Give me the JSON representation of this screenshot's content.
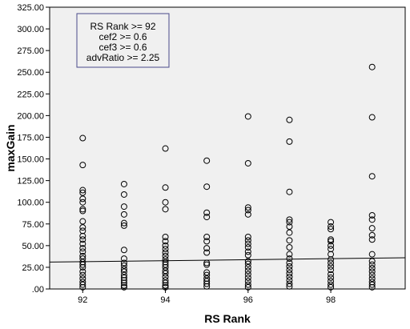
{
  "chart_data": {
    "type": "scatter",
    "title": "",
    "xlabel": "RS Rank",
    "ylabel": "maxGain",
    "xlim": [
      91.2,
      99.8
    ],
    "ylim": [
      0,
      325
    ],
    "x_ticks": [
      92,
      94,
      96,
      98
    ],
    "x_tick_labels": [
      "92",
      "94",
      "96",
      "98"
    ],
    "y_ticks": [
      0,
      25,
      50,
      75,
      100,
      125,
      150,
      175,
      200,
      225,
      250,
      275,
      300,
      325
    ],
    "y_tick_labels": [
      ".00",
      "25.00",
      "50.00",
      "75.00",
      "100.00",
      "125.00",
      "150.00",
      "175.00",
      "200.00",
      "225.00",
      "250.00",
      "275.00",
      "300.00",
      "325.00"
    ],
    "grid": false,
    "background": "#f0f0f0",
    "marker_color": "#000000",
    "annotation": {
      "lines": [
        "RS Rank >= 92",
        "cef2 >= 0.6",
        "cef3 >= 0.6",
        "advRatio >= 2.25"
      ],
      "placement": "top-left",
      "border_color": "#4a4a8a"
    },
    "fit_line": {
      "x": [
        91.2,
        99.8
      ],
      "y": [
        31,
        36
      ]
    },
    "points": [
      {
        "x": 92,
        "y": 174
      },
      {
        "x": 92,
        "y": 143
      },
      {
        "x": 92,
        "y": 114
      },
      {
        "x": 92,
        "y": 111
      },
      {
        "x": 92,
        "y": 104
      },
      {
        "x": 92,
        "y": 100
      },
      {
        "x": 92,
        "y": 92
      },
      {
        "x": 92,
        "y": 90
      },
      {
        "x": 92,
        "y": 78
      },
      {
        "x": 92,
        "y": 71
      },
      {
        "x": 92,
        "y": 67
      },
      {
        "x": 92,
        "y": 61
      },
      {
        "x": 92,
        "y": 57
      },
      {
        "x": 92,
        "y": 52
      },
      {
        "x": 92,
        "y": 47
      },
      {
        "x": 92,
        "y": 43
      },
      {
        "x": 92,
        "y": 38
      },
      {
        "x": 92,
        "y": 35
      },
      {
        "x": 92,
        "y": 31
      },
      {
        "x": 92,
        "y": 28
      },
      {
        "x": 92,
        "y": 25
      },
      {
        "x": 92,
        "y": 20
      },
      {
        "x": 92,
        "y": 16
      },
      {
        "x": 92,
        "y": 12
      },
      {
        "x": 92,
        "y": 8
      },
      {
        "x": 92,
        "y": 5
      },
      {
        "x": 92,
        "y": 2
      },
      {
        "x": 93,
        "y": 121
      },
      {
        "x": 93,
        "y": 109
      },
      {
        "x": 93,
        "y": 95
      },
      {
        "x": 93,
        "y": 86
      },
      {
        "x": 93,
        "y": 76
      },
      {
        "x": 93,
        "y": 73
      },
      {
        "x": 93,
        "y": 45
      },
      {
        "x": 93,
        "y": 35
      },
      {
        "x": 93,
        "y": 30
      },
      {
        "x": 93,
        "y": 27
      },
      {
        "x": 93,
        "y": 23
      },
      {
        "x": 93,
        "y": 20
      },
      {
        "x": 93,
        "y": 16
      },
      {
        "x": 93,
        "y": 13
      },
      {
        "x": 93,
        "y": 10
      },
      {
        "x": 93,
        "y": 7
      },
      {
        "x": 93,
        "y": 4
      },
      {
        "x": 93,
        "y": 2
      },
      {
        "x": 94,
        "y": 162
      },
      {
        "x": 94,
        "y": 117
      },
      {
        "x": 94,
        "y": 100
      },
      {
        "x": 94,
        "y": 92
      },
      {
        "x": 94,
        "y": 60
      },
      {
        "x": 94,
        "y": 55
      },
      {
        "x": 94,
        "y": 50
      },
      {
        "x": 94,
        "y": 46
      },
      {
        "x": 94,
        "y": 42
      },
      {
        "x": 94,
        "y": 38
      },
      {
        "x": 94,
        "y": 34
      },
      {
        "x": 94,
        "y": 31
      },
      {
        "x": 94,
        "y": 28
      },
      {
        "x": 94,
        "y": 25
      },
      {
        "x": 94,
        "y": 21
      },
      {
        "x": 94,
        "y": 18
      },
      {
        "x": 94,
        "y": 14
      },
      {
        "x": 94,
        "y": 10
      },
      {
        "x": 94,
        "y": 7
      },
      {
        "x": 94,
        "y": 4
      },
      {
        "x": 94,
        "y": 2
      },
      {
        "x": 95,
        "y": 148
      },
      {
        "x": 95,
        "y": 118
      },
      {
        "x": 95,
        "y": 88
      },
      {
        "x": 95,
        "y": 83
      },
      {
        "x": 95,
        "y": 60
      },
      {
        "x": 95,
        "y": 55
      },
      {
        "x": 95,
        "y": 47
      },
      {
        "x": 95,
        "y": 42
      },
      {
        "x": 95,
        "y": 30
      },
      {
        "x": 95,
        "y": 28
      },
      {
        "x": 95,
        "y": 19
      },
      {
        "x": 95,
        "y": 16
      },
      {
        "x": 95,
        "y": 12
      },
      {
        "x": 95,
        "y": 9
      },
      {
        "x": 95,
        "y": 6
      },
      {
        "x": 95,
        "y": 3
      },
      {
        "x": 96,
        "y": 199
      },
      {
        "x": 96,
        "y": 145
      },
      {
        "x": 96,
        "y": 94
      },
      {
        "x": 96,
        "y": 91
      },
      {
        "x": 96,
        "y": 86
      },
      {
        "x": 96,
        "y": 60
      },
      {
        "x": 96,
        "y": 56
      },
      {
        "x": 96,
        "y": 52
      },
      {
        "x": 96,
        "y": 48
      },
      {
        "x": 96,
        "y": 43
      },
      {
        "x": 96,
        "y": 39
      },
      {
        "x": 96,
        "y": 32
      },
      {
        "x": 96,
        "y": 29
      },
      {
        "x": 96,
        "y": 25
      },
      {
        "x": 96,
        "y": 21
      },
      {
        "x": 96,
        "y": 17
      },
      {
        "x": 96,
        "y": 13
      },
      {
        "x": 96,
        "y": 9
      },
      {
        "x": 96,
        "y": 5
      },
      {
        "x": 96,
        "y": 2
      },
      {
        "x": 97,
        "y": 195
      },
      {
        "x": 97,
        "y": 170
      },
      {
        "x": 97,
        "y": 112
      },
      {
        "x": 97,
        "y": 80
      },
      {
        "x": 97,
        "y": 77
      },
      {
        "x": 97,
        "y": 72
      },
      {
        "x": 97,
        "y": 65
      },
      {
        "x": 97,
        "y": 56
      },
      {
        "x": 97,
        "y": 48
      },
      {
        "x": 97,
        "y": 40
      },
      {
        "x": 97,
        "y": 35
      },
      {
        "x": 97,
        "y": 30
      },
      {
        "x": 97,
        "y": 26
      },
      {
        "x": 97,
        "y": 22
      },
      {
        "x": 97,
        "y": 18
      },
      {
        "x": 97,
        "y": 14
      },
      {
        "x": 97,
        "y": 10
      },
      {
        "x": 97,
        "y": 6
      },
      {
        "x": 97,
        "y": 3
      },
      {
        "x": 98,
        "y": 77
      },
      {
        "x": 98,
        "y": 72
      },
      {
        "x": 98,
        "y": 69
      },
      {
        "x": 98,
        "y": 57
      },
      {
        "x": 98,
        "y": 55
      },
      {
        "x": 98,
        "y": 50
      },
      {
        "x": 98,
        "y": 46
      },
      {
        "x": 98,
        "y": 40
      },
      {
        "x": 98,
        "y": 34
      },
      {
        "x": 98,
        "y": 30
      },
      {
        "x": 98,
        "y": 26
      },
      {
        "x": 98,
        "y": 22
      },
      {
        "x": 98,
        "y": 17
      },
      {
        "x": 98,
        "y": 13
      },
      {
        "x": 98,
        "y": 9
      },
      {
        "x": 98,
        "y": 5
      },
      {
        "x": 98,
        "y": 2
      },
      {
        "x": 99,
        "y": 256
      },
      {
        "x": 99,
        "y": 198
      },
      {
        "x": 99,
        "y": 130
      },
      {
        "x": 99,
        "y": 85
      },
      {
        "x": 99,
        "y": 80
      },
      {
        "x": 99,
        "y": 70
      },
      {
        "x": 99,
        "y": 62
      },
      {
        "x": 99,
        "y": 57
      },
      {
        "x": 99,
        "y": 40
      },
      {
        "x": 99,
        "y": 32
      },
      {
        "x": 99,
        "y": 28
      },
      {
        "x": 99,
        "y": 24
      },
      {
        "x": 99,
        "y": 20
      },
      {
        "x": 99,
        "y": 16
      },
      {
        "x": 99,
        "y": 12
      },
      {
        "x": 99,
        "y": 8
      },
      {
        "x": 99,
        "y": 5
      },
      {
        "x": 99,
        "y": 2
      }
    ]
  }
}
